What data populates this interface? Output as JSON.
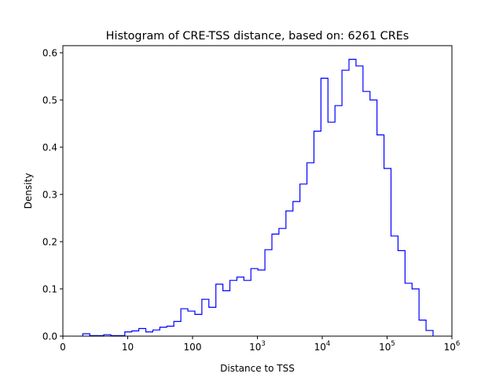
{
  "chart_data": {
    "type": "histogram-step",
    "title": "Histogram of CRE-TSS distance, based on: 6261 CREs",
    "xlabel": "Distance to TSS",
    "ylabel": "Density",
    "x_scale": "log10",
    "bin_range_log10": [
      0.307,
      5.709
    ],
    "ylim": [
      0,
      0.615
    ],
    "xlim_log10": [
      0,
      6
    ],
    "x_ticks": [
      {
        "log10": 0,
        "base": "0",
        "sup": ""
      },
      {
        "log10": 1,
        "base": "10",
        "sup": ""
      },
      {
        "log10": 2,
        "base": "100",
        "sup": ""
      },
      {
        "log10": 3,
        "base": "10",
        "sup": "3"
      },
      {
        "log10": 4,
        "base": "10",
        "sup": "4"
      },
      {
        "log10": 5,
        "base": "10",
        "sup": "5"
      },
      {
        "log10": 6,
        "base": "10",
        "sup": "6"
      }
    ],
    "y_ticks": [
      0.0,
      0.1,
      0.2,
      0.3,
      0.4,
      0.5,
      0.6
    ],
    "y_tick_labels": [
      "0.0",
      "0.1",
      "0.2",
      "0.3",
      "0.4",
      "0.5",
      "0.6"
    ],
    "grid": false,
    "line_color": "#0000ff",
    "values": [
      0.005,
      0.001,
      0.001,
      0.003,
      0.001,
      0.001,
      0.009,
      0.011,
      0.016,
      0.009,
      0.013,
      0.019,
      0.021,
      0.031,
      0.058,
      0.053,
      0.046,
      0.078,
      0.061,
      0.11,
      0.096,
      0.118,
      0.125,
      0.118,
      0.143,
      0.14,
      0.183,
      0.216,
      0.228,
      0.265,
      0.285,
      0.322,
      0.367,
      0.434,
      0.546,
      0.453,
      0.488,
      0.563,
      0.586,
      0.572,
      0.518,
      0.5,
      0.426,
      0.355,
      0.212,
      0.181,
      0.112,
      0.1,
      0.034,
      0.012
    ]
  }
}
